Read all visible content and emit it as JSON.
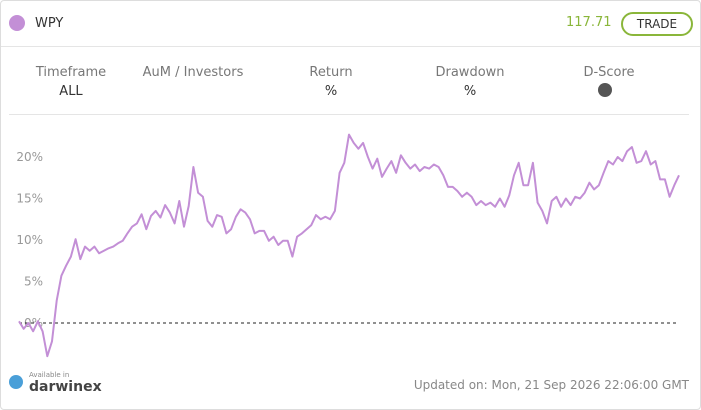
{
  "header": {
    "symbol": "WPY",
    "price": "117.71",
    "button": "TRADE"
  },
  "stats": [
    {
      "label": "Timeframe",
      "value": "ALL"
    },
    {
      "label": "AuM / Investors"
    },
    {
      "label": "Return",
      "value": "%"
    },
    {
      "label": "Drawdown",
      "value": "%"
    },
    {
      "label": "D-Score"
    }
  ],
  "chart_data": {
    "type": "line",
    "series": [
      {
        "name": "WPY",
        "color": "#c38fd6",
        "values": [
          0.2,
          -0.7,
          0,
          -1,
          0.2,
          -1,
          -4,
          -2.2,
          2.7,
          5.7,
          6.9,
          8,
          10.1,
          7.7,
          9.2,
          8.7,
          9.2,
          8.4,
          8.7,
          9,
          9.2,
          9.6,
          9.9,
          10.8,
          11.6,
          12,
          13.1,
          11.3,
          12.9,
          13.5,
          12.7,
          14.2,
          13.3,
          12,
          14.7,
          11.6,
          14.1,
          18.8,
          15.7,
          15.2,
          12.3,
          11.6,
          13,
          12.8,
          10.8,
          11.3,
          12.8,
          13.7,
          13.3,
          12.5,
          10.8,
          11.1,
          11.1,
          9.9,
          10.4,
          9.4,
          9.9,
          9.9,
          8,
          10.4,
          10.8,
          11.3,
          11.8,
          13,
          12.5,
          12.8,
          12.5,
          13.5,
          18.1,
          19.3,
          22.7,
          21.7,
          21,
          21.7,
          20,
          18.6,
          19.8,
          17.6,
          18.6,
          19.5,
          18.1,
          20.2,
          19.3,
          18.6,
          19.1,
          18.3,
          18.8,
          18.6,
          19.1,
          18.8,
          17.8,
          16.4,
          16.4,
          15.9,
          15.2,
          15.7,
          15.2,
          14.2,
          14.7,
          14.2,
          14.5,
          14,
          15,
          14,
          15.4,
          17.8,
          19.3,
          16.6,
          16.6,
          19.3,
          14.5,
          13.5,
          12,
          14.7,
          15.2,
          14,
          15,
          14.2,
          15.2,
          15,
          15.7,
          16.9,
          16.1,
          16.6,
          18.1,
          19.5,
          19.1,
          20,
          19.5,
          20.7,
          21.2,
          19.3,
          19.5,
          20.7,
          19.1,
          19.5,
          17.3,
          17.3,
          15.2,
          16.6,
          17.8
        ]
      }
    ],
    "ylim": [
      -5,
      24
    ],
    "yticks": [
      {
        "value": 0,
        "label": "0%"
      },
      {
        "value": 5,
        "label": "5%"
      },
      {
        "value": 10,
        "label": "10%"
      },
      {
        "value": 15,
        "label": "15%"
      },
      {
        "value": 20,
        "label": "20%"
      }
    ],
    "reference_line": 0
  },
  "footer": {
    "badge_small": "Available in",
    "badge": "darwinex",
    "updated": "Updated on: Mon, 21 Sep 2026 22:06:00 GMT"
  }
}
